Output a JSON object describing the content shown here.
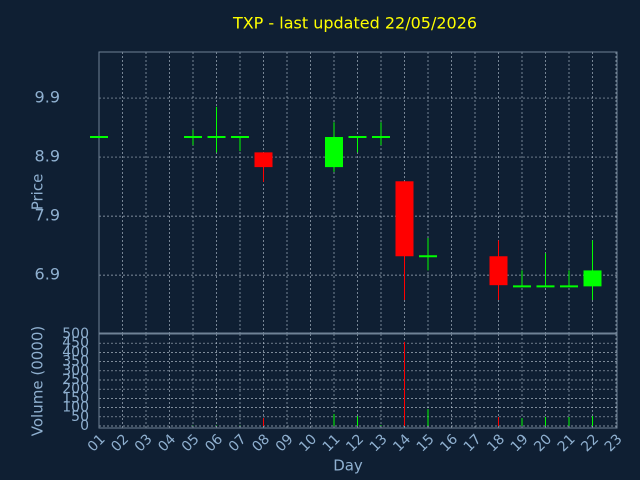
{
  "chart_data": {
    "type": "candlestick",
    "title": "TXP - last updated 22/05/2026",
    "ylabel": "Price",
    "volume_ylabel": "Volume (0000)",
    "xlabel": "Day",
    "x": [
      1,
      5,
      6,
      7,
      8,
      11,
      12,
      13,
      14,
      15,
      18,
      19,
      20,
      21,
      22
    ],
    "open": [
      9.24,
      9.24,
      9.24,
      9.24,
      8.98,
      8.73,
      9.24,
      9.24,
      8.49,
      7.22,
      7.22,
      6.71,
      6.71,
      6.71,
      6.71
    ],
    "high": [
      9.24,
      9.36,
      9.75,
      9.24,
      8.98,
      9.49,
      9.24,
      9.49,
      8.49,
      7.53,
      7.49,
      6.98,
      7.27,
      6.98,
      7.49
    ],
    "low": [
      9.24,
      9.1,
      8.98,
      9.0,
      8.48,
      8.65,
      8.98,
      9.1,
      6.48,
      6.98,
      6.48,
      6.71,
      6.71,
      6.71,
      6.48
    ],
    "close": [
      9.24,
      9.24,
      9.24,
      9.24,
      8.73,
      9.24,
      9.24,
      9.24,
      7.22,
      7.22,
      6.73,
      6.71,
      6.71,
      6.71,
      6.98
    ],
    "volume": [
      0,
      2,
      3,
      2,
      43,
      65,
      54,
      5,
      457,
      92,
      49,
      43,
      49,
      49,
      54
    ],
    "up_color": "#00ff00",
    "down_color": "#ff0000",
    "xlim": [
      1,
      23
    ],
    "xticks": [
      {
        "value": 1,
        "label": "01"
      },
      {
        "value": 2,
        "label": "02"
      },
      {
        "value": 3,
        "label": "03"
      },
      {
        "value": 4,
        "label": "04"
      },
      {
        "value": 5,
        "label": "05"
      },
      {
        "value": 6,
        "label": "06"
      },
      {
        "value": 7,
        "label": "07"
      },
      {
        "value": 8,
        "label": "08"
      },
      {
        "value": 9,
        "label": "09"
      },
      10,
      11,
      12,
      13,
      14,
      15,
      16,
      17,
      18,
      19,
      20,
      21,
      22,
      23
    ],
    "ylim": [
      5.92,
      10.68
    ],
    "yticks": [
      6.9,
      7.9,
      8.9,
      9.9
    ],
    "volume_ylim": [
      0,
      500
    ],
    "volume_yticks": [
      0,
      50,
      100,
      150,
      200,
      250,
      300,
      350,
      400,
      450,
      500
    ],
    "grid": true
  }
}
